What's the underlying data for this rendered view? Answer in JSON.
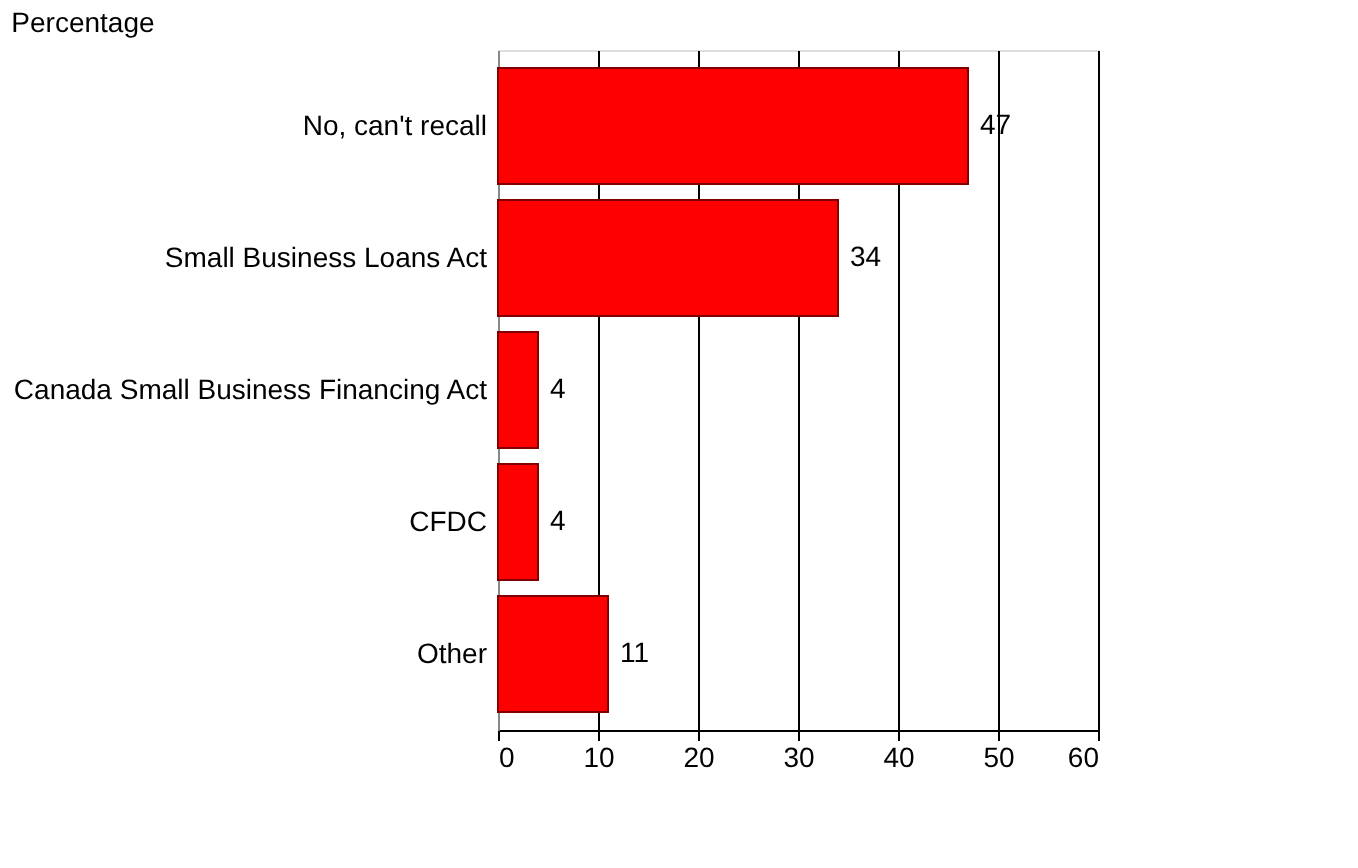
{
  "chart_data": {
    "type": "bar",
    "orientation": "horizontal",
    "title": "Percentage",
    "categories": [
      "No, can't recall",
      "Small Business Loans Act",
      "Canada Small Business Financing Act",
      "CFDC",
      "Other"
    ],
    "values": [
      47,
      34,
      4,
      4,
      11
    ],
    "color": "#ff0000",
    "xlim": [
      0,
      60
    ],
    "xticks": [
      0,
      10,
      20,
      30,
      40,
      50,
      60
    ],
    "grid": "x",
    "data_labels": true
  }
}
